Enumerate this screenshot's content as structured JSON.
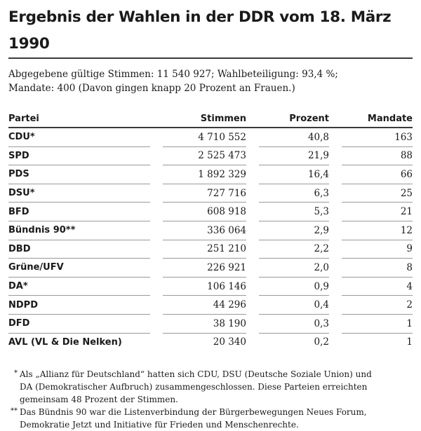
{
  "title": "Ergebnis der Wahlen in der DDR vom 18. März 1990",
  "intro": {
    "line1": "Abgegebene gültige Stimmen: 11 540 927; Wahlbeteiligung: 93,4 %;",
    "line2": "Mandate: 400 (Davon gingen knapp 20 Prozent an Frauen.)"
  },
  "table": {
    "headers": {
      "party": "Partei",
      "votes": "Stimmen",
      "percent": "Prozent",
      "seats": "Mandate"
    },
    "rows": [
      {
        "party": "CDU*",
        "votes": "4 710 552",
        "percent": "40,8",
        "seats": "163"
      },
      {
        "party": "SPD",
        "votes": "2 525 473",
        "percent": "21,9",
        "seats": "88"
      },
      {
        "party": "PDS",
        "votes": "1 892 329",
        "percent": "16,4",
        "seats": "66"
      },
      {
        "party": "DSU*",
        "votes": "727 716",
        "percent": "6,3",
        "seats": "25"
      },
      {
        "party": "BFD",
        "votes": "608 918",
        "percent": "5,3",
        "seats": "21"
      },
      {
        "party": "Bündnis 90**",
        "votes": "336 064",
        "percent": "2,9",
        "seats": "12"
      },
      {
        "party": "DBD",
        "votes": "251 210",
        "percent": "2,2",
        "seats": "9"
      },
      {
        "party": "Grüne/UFV",
        "votes": "226 921",
        "percent": "2,0",
        "seats": "8"
      },
      {
        "party": "DA*",
        "votes": "106 146",
        "percent": "0,9",
        "seats": "4"
      },
      {
        "party": "NDPD",
        "votes": "44 296",
        "percent": "0,4",
        "seats": "2"
      },
      {
        "party": "DFD",
        "votes": "38 190",
        "percent": "0,3",
        "seats": "1"
      },
      {
        "party": "AVL (VL & Die Nelken)",
        "votes": "20 340",
        "percent": "0,2",
        "seats": "1"
      }
    ]
  },
  "footnotes": [
    {
      "mark": "*",
      "lines": [
        "Als „Allianz für Deutschland“ hatten sich CDU, DSU (Deutsche Soziale Union) und",
        "DA (Demokratischer Aufbruch) zusammengeschlossen. Diese Parteien erreichten",
        "gemeinsam 48 Prozent der Stimmen."
      ]
    },
    {
      "mark": "**",
      "lines": [
        "Das Bündnis 90 war die Listenverbindung der Bürgerbewegungen Neues Forum,",
        "Demokratie Jetzt und Initiative für Frieden und Menschenrechte."
      ]
    }
  ]
}
